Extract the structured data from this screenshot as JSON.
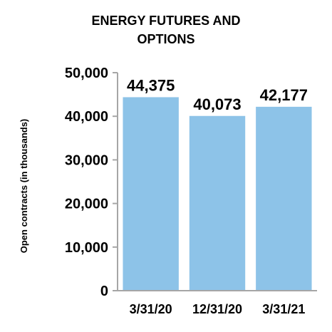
{
  "chart_data": {
    "type": "bar",
    "title": "ENERGY FUTURES AND OPTIONS",
    "ylabel": "Open contracts (in thousands)",
    "xlabel": "",
    "categories": [
      "3/31/20",
      "12/31/20",
      "3/31/21"
    ],
    "values": [
      44375,
      40073,
      42177
    ],
    "data_labels": [
      "44,375",
      "40,073",
      "42,177"
    ],
    "ylim": [
      0,
      50000
    ],
    "yticks": [
      0,
      10000,
      20000,
      30000,
      40000,
      50000
    ],
    "ytick_labels": [
      "0",
      "10,000",
      "20,000",
      "30,000",
      "40,000",
      "50,000"
    ],
    "grid": false,
    "legend": "none",
    "bar_color": "#8DC3E8",
    "axis_color": "#A6A6A6"
  }
}
